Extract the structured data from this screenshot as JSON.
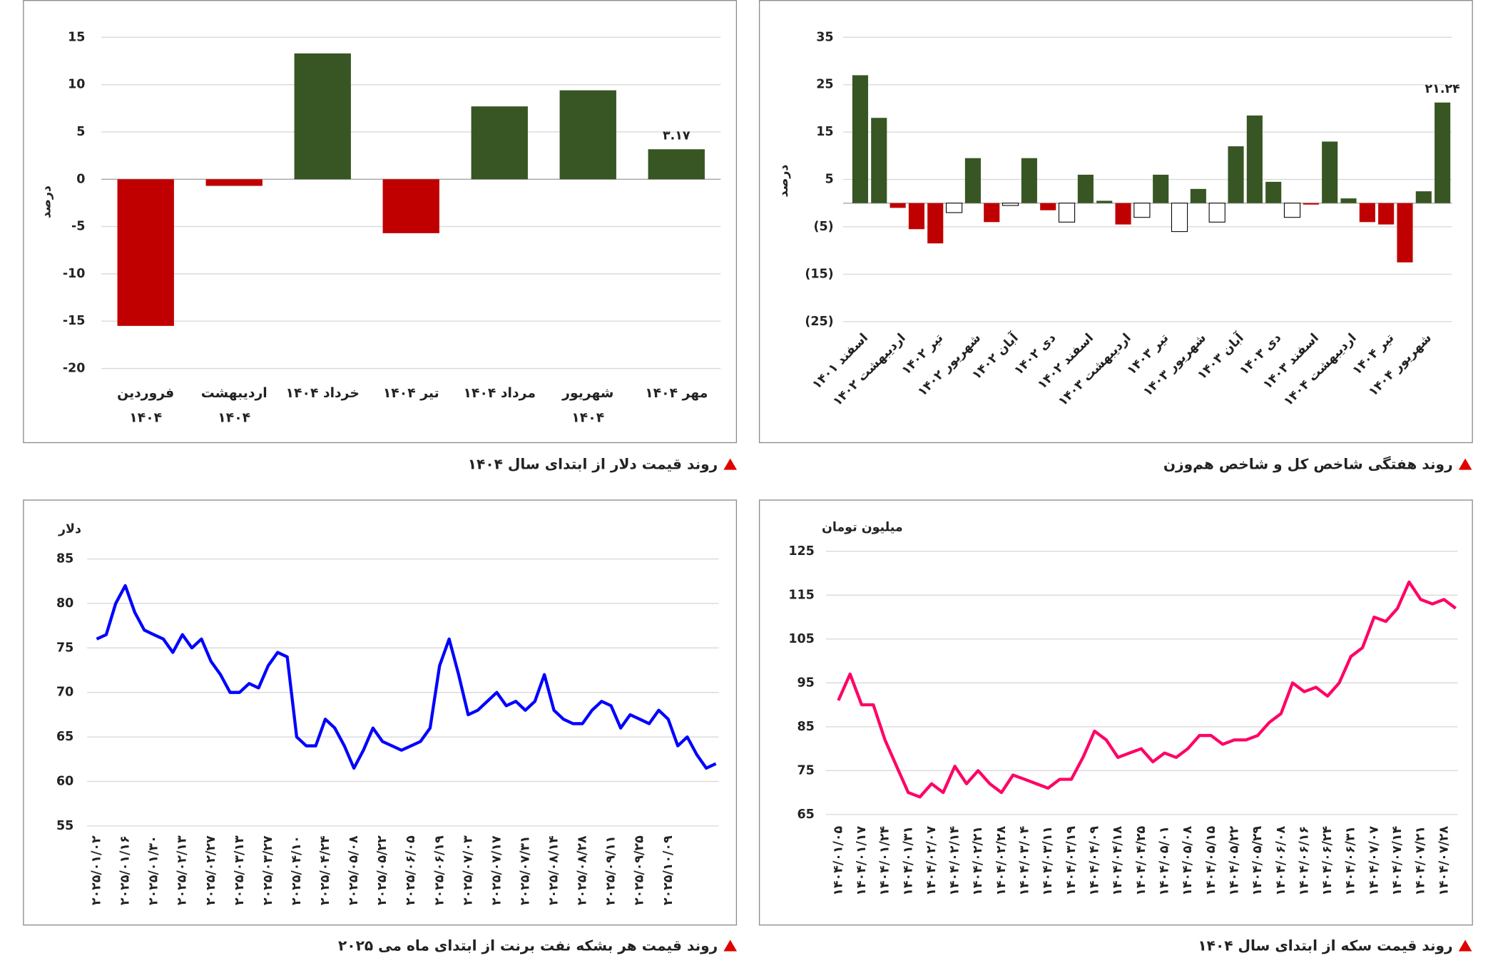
{
  "chart_data": [
    {
      "type": "bar",
      "title": "روند قیمت دلار از ابتدای سال ۱۴۰۴",
      "y_label": "درصد",
      "categories": [
        "فروردین ۱۴۰۴",
        "اردیبهشت ۱۴۰۴",
        "خرداد ۱۴۰۴",
        "تیر ۱۴۰۴",
        "مرداد ۱۴۰۴",
        "شهریور ۱۴۰۴",
        "مهر ۱۴۰۴"
      ],
      "values": [
        -15.5,
        -0.7,
        13.3,
        -5.7,
        7.7,
        9.4,
        3.17
      ],
      "colors": [
        "#c00000",
        "#c00000",
        "#375623",
        "#c00000",
        "#375623",
        "#375623",
        "#375623"
      ],
      "value_labels": [
        null,
        null,
        null,
        null,
        null,
        null,
        "۳.۱۷"
      ],
      "ylim": [
        -20,
        15
      ],
      "yticks": [
        -20,
        -15,
        -10,
        -5,
        0,
        5,
        10,
        15
      ],
      "grid": true
    },
    {
      "type": "bar",
      "title": "روند هفتگی شاخص کل و شاخص هم‌وزن",
      "y_label": "درصد",
      "categories": [
        "اسفند ۱۴۰۱",
        null,
        "اردیبهشت ۱۴۰۲",
        null,
        "تیر ۱۴۰۲",
        null,
        "شهریور ۱۴۰۲",
        null,
        "آبان ۱۴۰۲",
        null,
        "دی ۱۴۰۲",
        null,
        "اسفند ۱۴۰۲",
        null,
        "اردیبهشت ۱۴۰۳",
        null,
        "تیر ۱۴۰۳",
        null,
        "شهریور ۱۴۰۳",
        null,
        "آبان ۱۴۰۳",
        null,
        "دی ۱۴۰۳",
        null,
        "اسفند ۱۴۰۳",
        null,
        "اردیبهشت ۱۴۰۴",
        null,
        "تیر ۱۴۰۴",
        null,
        "شهریور ۱۴۰۴",
        null
      ],
      "values": [
        27,
        18,
        -1,
        -5.5,
        -8.5,
        -2,
        9.5,
        -4,
        -0.5,
        9.5,
        -1.5,
        -4,
        6,
        0.5,
        -4.5,
        -3,
        6,
        -6,
        3,
        -4,
        12,
        18.5,
        4.5,
        -3,
        -0.3,
        13,
        1,
        -4,
        -4.5,
        -12.5,
        2.5,
        21.24
      ],
      "colors": [
        "#375623",
        "#375623",
        "#c00000",
        "#c00000",
        "#c00000",
        "#ffffff",
        "#375623",
        "#c00000",
        "#ffffff",
        "#375623",
        "#c00000",
        "#ffffff",
        "#375623",
        "#375623",
        "#c00000",
        "#ffffff",
        "#375623",
        "#ffffff",
        "#375623",
        "#ffffff",
        "#375623",
        "#375623",
        "#375623",
        "#ffffff",
        "#c00000",
        "#375623",
        "#375623",
        "#c00000",
        "#c00000",
        "#c00000",
        "#375623",
        "#375623"
      ],
      "value_labels": [
        null,
        null,
        null,
        null,
        null,
        null,
        null,
        null,
        null,
        null,
        null,
        null,
        null,
        null,
        null,
        null,
        null,
        null,
        null,
        null,
        null,
        null,
        null,
        null,
        null,
        null,
        null,
        null,
        null,
        null,
        null,
        "۲۱.۲۴"
      ],
      "ylim": [
        -25,
        35
      ],
      "yticks": [
        {
          "value": -25,
          "label": "(25)"
        },
        {
          "value": -15,
          "label": "(15)"
        },
        {
          "value": -5,
          "label": "(5)"
        },
        5,
        15,
        25,
        35
      ],
      "grid": true
    },
    {
      "type": "line",
      "title": "روند قیمت هر بشکه نفت برنت از ابتدای ماه می ۲۰۲۵",
      "y_label": "دلار",
      "categories": [
        "۲۰۲۵/۰۱/۰۲",
        null,
        null,
        "۲۰۲۵/۰۱/۱۶",
        null,
        null,
        "۲۰۲۵/۰۱/۳۰",
        null,
        null,
        "۲۰۲۵/۰۲/۱۳",
        null,
        null,
        "۲۰۲۵/۰۲/۲۷",
        null,
        null,
        "۲۰۲۵/۰۳/۱۳",
        null,
        null,
        "۲۰۲۵/۰۳/۲۷",
        null,
        null,
        "۲۰۲۵/۰۴/۱۰",
        null,
        null,
        "۲۰۲۵/۰۴/۲۴",
        null,
        null,
        "۲۰۲۵/۰۵/۰۸",
        null,
        null,
        "۲۰۲۵/۰۵/۲۲",
        null,
        null,
        "۲۰۲۵/۰۶/۰۵",
        null,
        null,
        "۲۰۲۵/۰۶/۱۹",
        null,
        null,
        "۲۰۲۵/۰۷/۰۳",
        null,
        null,
        "۲۰۲۵/۰۷/۱۷",
        null,
        null,
        "۲۰۲۵/۰۷/۳۱",
        null,
        null,
        "۲۰۲۵/۰۸/۱۴",
        null,
        null,
        "۲۰۲۵/۰۸/۲۸",
        null,
        null,
        "۲۰۲۵/۰۹/۱۱",
        null,
        null,
        "۲۰۲۵/۰۹/۲۵",
        null,
        null,
        "۲۰۲۵/۱۰/۰۹",
        null,
        null,
        null,
        null,
        null
      ],
      "values": [
        76,
        76.5,
        80,
        82,
        79,
        77,
        76.5,
        76,
        74.5,
        76.5,
        75,
        76,
        73.5,
        72,
        70,
        70,
        71,
        70.5,
        73,
        74.5,
        74,
        65,
        64,
        64,
        67,
        66,
        64,
        61.5,
        63.5,
        66,
        64.5,
        64,
        63.5,
        64,
        64.5,
        66,
        73,
        76,
        72,
        67.5,
        68,
        69,
        70,
        68.5,
        69,
        68,
        69,
        72,
        68,
        67,
        66.5,
        66.5,
        68,
        69,
        68.5,
        66,
        67.5,
        67,
        66.5,
        68,
        67,
        64,
        65,
        63,
        61.5,
        62
      ],
      "color": "#0000ff",
      "ylim": [
        55,
        85
      ],
      "yticks": [
        55,
        60,
        65,
        70,
        75,
        80,
        85
      ],
      "grid": true
    },
    {
      "type": "line",
      "title": "روند قیمت سکه از ابتدای سال ۱۴۰۴",
      "y_label": "میلیون تومان",
      "categories": [
        "۱۴۰۴/۰۱/۰۵",
        null,
        "۱۴۰۴/۰۱/۱۷",
        null,
        "۱۴۰۴/۰۱/۲۴",
        null,
        "۱۴۰۴/۰۱/۳۱",
        null,
        "۱۴۰۴/۰۲/۰۷",
        null,
        "۱۴۰۴/۰۲/۱۴",
        null,
        "۱۴۰۴/۰۲/۲۱",
        null,
        "۱۴۰۴/۰۲/۲۸",
        null,
        "۱۴۰۴/۰۳/۰۴",
        null,
        "۱۴۰۴/۰۳/۱۱",
        null,
        "۱۴۰۴/۰۳/۱۹",
        null,
        "۱۴۰۴/۰۴/۰۹",
        null,
        "۱۴۰۴/۰۴/۱۸",
        null,
        "۱۴۰۴/۰۴/۲۵",
        null,
        "۱۴۰۴/۰۵/۰۱",
        null,
        "۱۴۰۴/۰۵/۰۸",
        null,
        "۱۴۰۴/۰۵/۱۵",
        null,
        "۱۴۰۴/۰۵/۲۲",
        null,
        "۱۴۰۴/۰۵/۲۹",
        null,
        "۱۴۰۴/۰۶/۰۸",
        null,
        "۱۴۰۴/۰۶/۱۶",
        null,
        "۱۴۰۴/۰۶/۲۴",
        null,
        "۱۴۰۴/۰۶/۳۱",
        null,
        "۱۴۰۴/۰۷/۰۷",
        null,
        "۱۴۰۴/۰۷/۱۴",
        null,
        "۱۴۰۴/۰۷/۲۱",
        null,
        "۱۴۰۴/۰۷/۲۸",
        null
      ],
      "values": [
        91,
        97,
        90,
        90,
        82,
        76,
        70,
        69,
        72,
        70,
        76,
        72,
        75,
        72,
        70,
        74,
        73,
        72,
        71,
        73,
        73,
        78,
        84,
        82,
        78,
        79,
        80,
        77,
        79,
        78,
        80,
        83,
        83,
        81,
        82,
        82,
        83,
        86,
        88,
        95,
        93,
        94,
        92,
        95,
        101,
        103,
        110,
        109,
        112,
        118,
        114,
        113,
        114,
        112
      ],
      "color": "#ff0066",
      "ylim": [
        65,
        125
      ],
      "yticks": [
        65,
        75,
        85,
        95,
        105,
        115,
        125
      ],
      "grid": true
    }
  ]
}
